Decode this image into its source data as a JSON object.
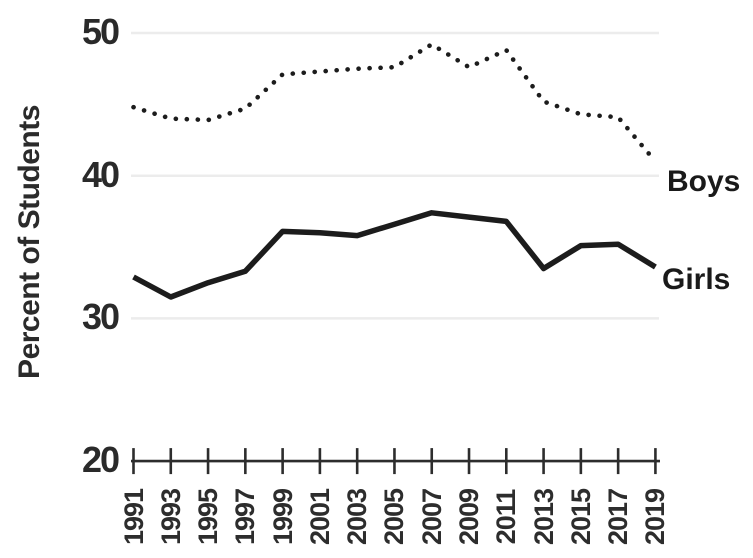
{
  "chart_data": {
    "type": "line",
    "title": "",
    "ylabel": "Percent of Students",
    "xlabel": "",
    "x": [
      1991,
      1993,
      1995,
      1997,
      1999,
      2001,
      2003,
      2005,
      2007,
      2009,
      2011,
      2013,
      2015,
      2017,
      2019
    ],
    "xtick_labels": [
      "1991",
      "1993",
      "1995",
      "1997",
      "1999",
      "2001",
      "2003",
      "2005",
      "2007",
      "2009",
      "2011",
      "2013",
      "2015",
      "2017",
      "2019"
    ],
    "series": [
      {
        "name": "Boys",
        "style": "dotted",
        "values": [
          44.8,
          44.0,
          43.9,
          44.7,
          47.1,
          47.3,
          47.5,
          47.6,
          49.2,
          47.6,
          48.8,
          45.2,
          44.3,
          44.1,
          41.0
        ]
      },
      {
        "name": "Girls",
        "style": "solid",
        "values": [
          32.9,
          31.5,
          32.5,
          33.3,
          36.1,
          36.0,
          35.8,
          36.6,
          37.4,
          37.1,
          36.8,
          33.5,
          35.1,
          35.2,
          33.6
        ]
      }
    ],
    "ylim": [
      20,
      52
    ],
    "yticks": [
      50,
      40,
      30,
      20
    ],
    "grid": "horizontal-light",
    "legend_position": "right-of-line-ends",
    "colors": {
      "line": "#1c1c1c",
      "axis": "#2d2d2d",
      "grid": "#ececec",
      "tick_text": "#2d2d2d"
    }
  }
}
